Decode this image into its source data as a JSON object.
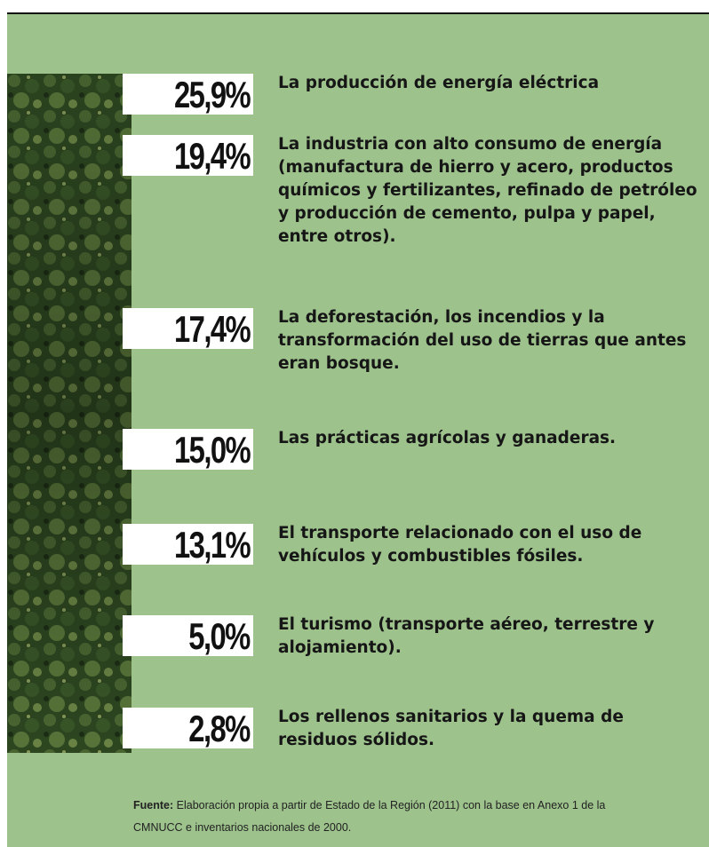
{
  "items": [
    {
      "percent": "25,9%",
      "text": "La producción de energía eléctrica"
    },
    {
      "percent": "19,4%",
      "text": "La industria con alto consumo de energía (manufactura de hierro y acero, productos químicos y fertilizantes, refinado de petróleo y producción de cemento, pulpa y papel, entre otros)."
    },
    {
      "percent": "17,4%",
      "text": "La deforestación, los incendios y la transformación del uso de tierras que antes eran bosque."
    },
    {
      "percent": "15,0%",
      "text": "Las prácticas agrícolas y ganaderas."
    },
    {
      "percent": "13,1%",
      "text": "El transporte relacionado con el uso de vehículos y combustibles fósiles."
    },
    {
      "percent": "5,0%",
      "text": "El turismo (transporte aéreo, terrestre y alojamiento)."
    },
    {
      "percent": "2,8%",
      "text": "Los rellenos sanitarios y la quema de residuos sólidos."
    }
  ],
  "source": {
    "label": "Fuente:",
    "text": "Elaboración propia a partir de Estado de la Región (2011) con la base en Anexo 1 de la CMNUCC e inventarios nacionales de 2000."
  }
}
